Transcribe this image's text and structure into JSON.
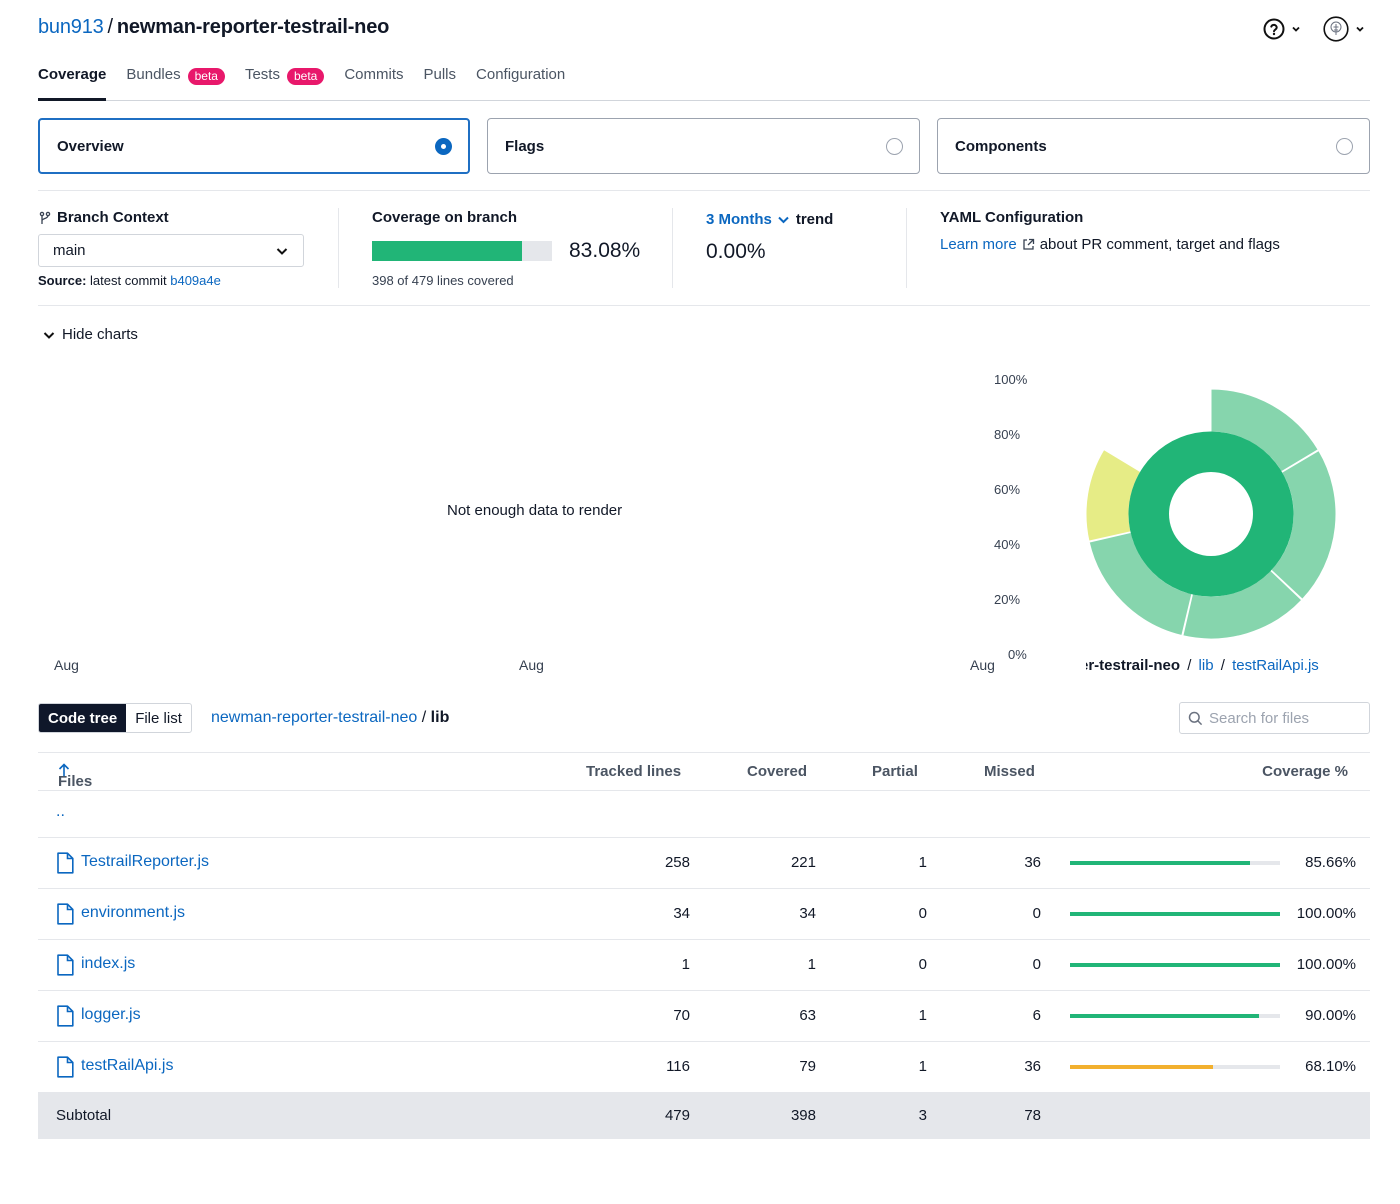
{
  "header": {
    "owner": "bun913",
    "separator": "/",
    "repo": "newman-reporter-testrail-neo",
    "help_icon": "help-circle-icon",
    "avatar_icon": "avatar-icon"
  },
  "tabs": [
    {
      "label": "Coverage",
      "active": true
    },
    {
      "label": "Bundles",
      "badge": "beta"
    },
    {
      "label": "Tests",
      "badge": "beta"
    },
    {
      "label": "Commits"
    },
    {
      "label": "Pulls"
    },
    {
      "label": "Configuration"
    }
  ],
  "selector": {
    "overview": "Overview",
    "flags": "Flags",
    "components": "Components",
    "selected": "Overview"
  },
  "summary": {
    "branch_context_title": "Branch Context",
    "branch": "main",
    "source_label": "Source:",
    "source_text": "latest commit",
    "commit": "b409a4e",
    "coverage_title": "Coverage on branch",
    "coverage_pct": "83.08%",
    "coverage_fraction": 0.8308,
    "lines_covered_text": "398 of 479 lines covered",
    "trend_range": "3 Months",
    "trend_label": "trend",
    "trend_value": "0.00%",
    "yaml_title": "YAML Configuration",
    "yaml_link": "Learn more",
    "yaml_text": "about PR comment, target and flags"
  },
  "charts": {
    "toggle_label": "Hide charts",
    "empty_message": "Not enough data to render",
    "x_ticks": [
      "Aug",
      "Aug",
      "Aug"
    ],
    "y_ticks": [
      "100%",
      "80%",
      "60%",
      "40%",
      "20%",
      "0%"
    ],
    "sunburst_path": {
      "segment_1": "er-testrail-neo",
      "sep": "/",
      "segment_2": "lib",
      "segment_3": "testRailApi.js"
    },
    "colors": {
      "high": "#21b577",
      "high_light": "#86d5ad",
      "mid_light": "#e6ec86"
    }
  },
  "codetree": {
    "code_tree_label": "Code tree",
    "file_list_label": "File list",
    "path_root": "newman-reporter-testrail-neo",
    "path_sep": "/",
    "path_current": "lib",
    "search_placeholder": "Search for files"
  },
  "table": {
    "headers": {
      "files": "Files",
      "tracked": "Tracked lines",
      "covered": "Covered",
      "partial": "Partial",
      "missed": "Missed",
      "coverage": "Coverage %"
    },
    "parent_dir": "..",
    "rows": [
      {
        "name": "TestrailReporter.js",
        "tracked": "258",
        "covered": "221",
        "partial": "1",
        "missed": "36",
        "coverage": "85.66%",
        "fraction": 0.8566,
        "color": "#21b577"
      },
      {
        "name": "environment.js",
        "tracked": "34",
        "covered": "34",
        "partial": "0",
        "missed": "0",
        "coverage": "100.00%",
        "fraction": 1.0,
        "color": "#21b577"
      },
      {
        "name": "index.js",
        "tracked": "1",
        "covered": "1",
        "partial": "0",
        "missed": "0",
        "coverage": "100.00%",
        "fraction": 1.0,
        "color": "#21b577"
      },
      {
        "name": "logger.js",
        "tracked": "70",
        "covered": "63",
        "partial": "1",
        "missed": "6",
        "coverage": "90.00%",
        "fraction": 0.9,
        "color": "#21b577"
      },
      {
        "name": "testRailApi.js",
        "tracked": "116",
        "covered": "79",
        "partial": "1",
        "missed": "36",
        "coverage": "68.10%",
        "fraction": 0.681,
        "color": "#f2b02e"
      }
    ],
    "subtotal": {
      "label": "Subtotal",
      "tracked": "479",
      "covered": "398",
      "partial": "3",
      "missed": "78"
    }
  }
}
